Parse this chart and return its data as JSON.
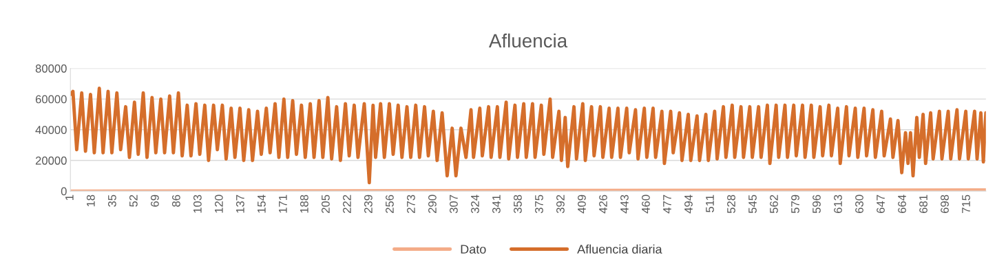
{
  "chart_data": {
    "type": "line",
    "title": "Afluencia",
    "xlim": [
      1,
      730
    ],
    "ylim": [
      0,
      80000
    ],
    "xticks": [
      1,
      18,
      35,
      52,
      69,
      86,
      103,
      120,
      137,
      154,
      171,
      188,
      205,
      222,
      239,
      256,
      273,
      290,
      307,
      324,
      341,
      358,
      375,
      392,
      409,
      426,
      443,
      460,
      477,
      494,
      511,
      528,
      545,
      562,
      579,
      596,
      613,
      630,
      647,
      664,
      681,
      698,
      715
    ],
    "yticks": [
      0,
      20000,
      40000,
      60000,
      80000
    ],
    "grid": "y",
    "legend": "bottom",
    "marker": "none",
    "line_style": "solid",
    "series": [
      {
        "name": "Dato",
        "color": "#f4ac88",
        "x": [
          1,
          730
        ],
        "values": [
          1,
          730
        ]
      },
      {
        "name": "Afluencia diaria",
        "color": "#d56e2b",
        "x": [
          1,
          3,
          6,
          10,
          13,
          17,
          20,
          24,
          27,
          31,
          34,
          38,
          41,
          45,
          48,
          52,
          55,
          59,
          62,
          66,
          69,
          73,
          76,
          80,
          83,
          87,
          90,
          94,
          97,
          101,
          104,
          108,
          111,
          115,
          118,
          122,
          125,
          129,
          132,
          136,
          139,
          143,
          146,
          150,
          153,
          157,
          160,
          164,
          167,
          171,
          174,
          178,
          181,
          185,
          188,
          192,
          195,
          199,
          202,
          206,
          209,
          213,
          216,
          220,
          223,
          227,
          230,
          235,
          239,
          242,
          244,
          248,
          251,
          255,
          258,
          262,
          265,
          269,
          272,
          276,
          279,
          283,
          286,
          290,
          293,
          297,
          301,
          305,
          308,
          312,
          316,
          320,
          322,
          327,
          329,
          334,
          336,
          341,
          343,
          348,
          350,
          355,
          357,
          362,
          364,
          369,
          371,
          376,
          378,
          383,
          385,
          390,
          392,
          395,
          397,
          402,
          404,
          409,
          411,
          416,
          418,
          423,
          425,
          430,
          432,
          437,
          439,
          444,
          446,
          451,
          453,
          458,
          460,
          465,
          467,
          472,
          474,
          479,
          481,
          486,
          488,
          493,
          495,
          500,
          502,
          507,
          509,
          514,
          516,
          521,
          523,
          528,
          530,
          535,
          537,
          542,
          544,
          549,
          551,
          556,
          558,
          563,
          565,
          570,
          572,
          577,
          579,
          584,
          586,
          591,
          593,
          598,
          600,
          605,
          607,
          612,
          614,
          619,
          621,
          626,
          628,
          633,
          635,
          640,
          642,
          647,
          649,
          654,
          656,
          660,
          663,
          666,
          668,
          670,
          672,
          675,
          677,
          680,
          682,
          686,
          688,
          693,
          695,
          700,
          702,
          707,
          709,
          714,
          716,
          721,
          723,
          726,
          728,
          730
        ],
        "values": [
          63000,
          65000,
          27000,
          64000,
          26000,
          63000,
          25000,
          67000,
          25000,
          65000,
          25000,
          64000,
          27000,
          55000,
          22000,
          58000,
          24000,
          64000,
          22000,
          61000,
          25000,
          60000,
          25000,
          62000,
          25000,
          64000,
          23000,
          56000,
          23000,
          57000,
          24000,
          56000,
          20000,
          56000,
          27000,
          56000,
          21000,
          54000,
          22000,
          54000,
          20000,
          53000,
          20000,
          52000,
          24000,
          54000,
          25000,
          57000,
          22000,
          60000,
          22000,
          59000,
          24000,
          56000,
          22000,
          57000,
          22000,
          59000,
          22000,
          61000,
          21000,
          55000,
          20000,
          57000,
          23000,
          56000,
          22000,
          57000,
          5500,
          56000,
          22000,
          57000,
          22000,
          57000,
          24000,
          56000,
          22000,
          55000,
          22000,
          56000,
          22000,
          55000,
          23000,
          52000,
          20000,
          51000,
          10000,
          41000,
          10000,
          41000,
          22000,
          53000,
          22000,
          54000,
          23000,
          55000,
          22000,
          55000,
          22000,
          58000,
          21000,
          56000,
          22000,
          57000,
          22000,
          57000,
          22000,
          56000,
          24000,
          60000,
          22000,
          52000,
          20000,
          48000,
          16000,
          55000,
          21000,
          57000,
          20000,
          55000,
          23000,
          55000,
          22000,
          54000,
          22000,
          54000,
          22000,
          54000,
          25000,
          53000,
          21000,
          54000,
          22000,
          54000,
          22000,
          52000,
          18000,
          52000,
          25000,
          51000,
          20000,
          50000,
          20000,
          49000,
          20000,
          50000,
          20000,
          52000,
          21000,
          55000,
          22000,
          56000,
          22000,
          55000,
          22000,
          55000,
          22000,
          55000,
          22000,
          56000,
          18000,
          56000,
          22000,
          56000,
          22000,
          56000,
          23000,
          56000,
          22000,
          56000,
          22000,
          55000,
          23000,
          56000,
          23000,
          54000,
          18000,
          55000,
          23000,
          54000,
          22000,
          54000,
          23000,
          53000,
          22000,
          52000,
          23000,
          47000,
          22000,
          46000,
          12000,
          38000,
          18000,
          38000,
          10000,
          48000,
          22000,
          50000,
          18000,
          51000,
          21000,
          52000,
          21000,
          52000,
          21000,
          53000,
          21000,
          52000,
          21000,
          52000,
          21000,
          51000,
          19000,
          51000
        ]
      }
    ]
  }
}
